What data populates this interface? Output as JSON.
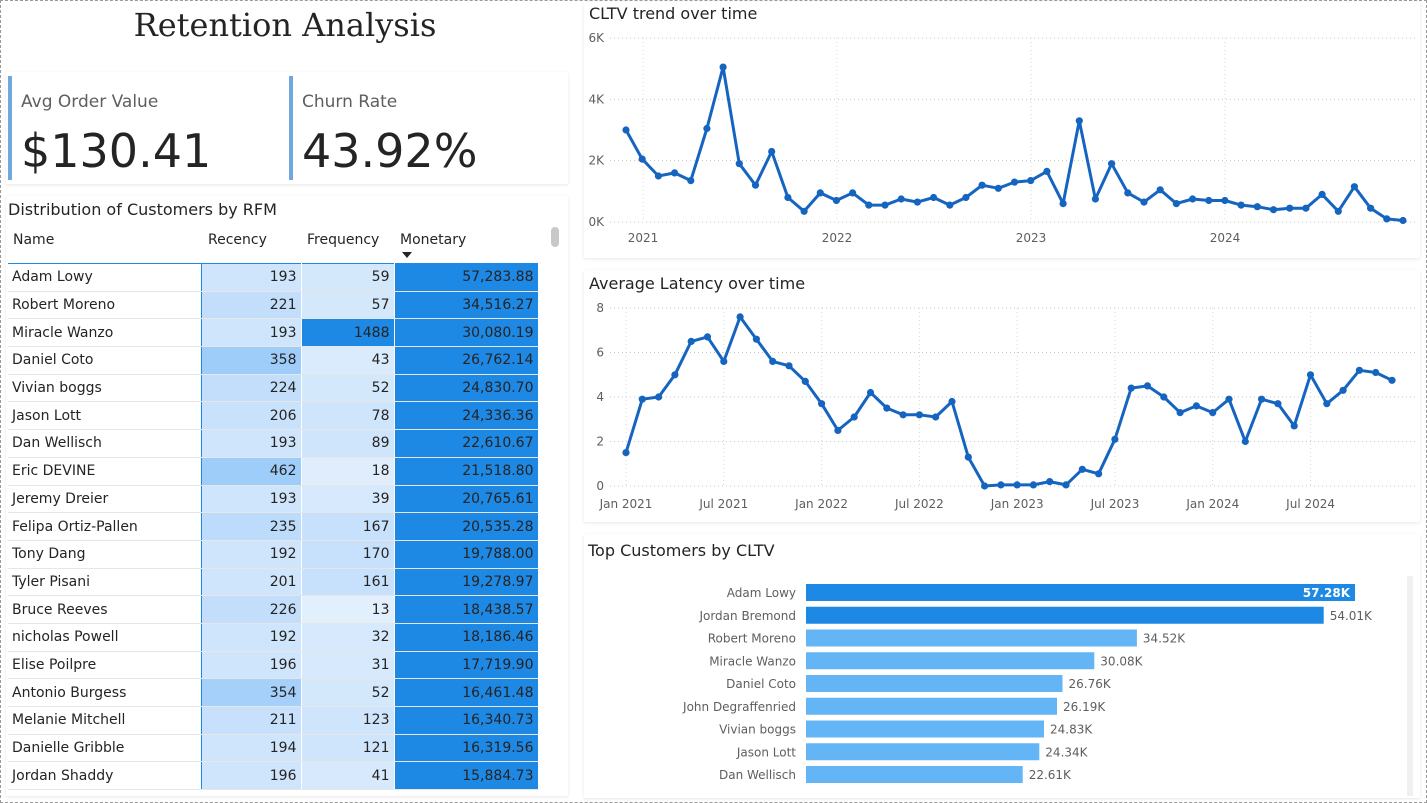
{
  "report": {
    "title": "Retention Analysis"
  },
  "kpis": {
    "avg_order_value": {
      "label": "Avg Order Value",
      "value": "$130.41"
    },
    "churn_rate": {
      "label": "Churn Rate",
      "value": "43.92%"
    }
  },
  "rfm_table": {
    "title": "Distribution of Customers by RFM",
    "columns": [
      "Name",
      "Recency",
      "Frequency",
      "Monetary"
    ],
    "sort_column": "Monetary",
    "rows": [
      [
        "Adam Lowy",
        "193",
        "59",
        "57,283.88"
      ],
      [
        "Robert Moreno",
        "221",
        "57",
        "34,516.27"
      ],
      [
        "Miracle Wanzo",
        "193",
        "1488",
        "30,080.19"
      ],
      [
        "Daniel Coto",
        "358",
        "43",
        "26,762.14"
      ],
      [
        "Vivian boggs",
        "224",
        "52",
        "24,830.70"
      ],
      [
        "Jason Lott",
        "206",
        "78",
        "24,336.36"
      ],
      [
        "Dan Wellisch",
        "193",
        "89",
        "22,610.67"
      ],
      [
        "Eric DEVINE",
        "462",
        "18",
        "21,518.80"
      ],
      [
        "Jeremy Dreier",
        "193",
        "39",
        "20,765.61"
      ],
      [
        "Felipa Ortiz-Pallen",
        "235",
        "167",
        "20,535.28"
      ],
      [
        "Tony Dang",
        "192",
        "170",
        "19,788.00"
      ],
      [
        "Tyler Pisani",
        "201",
        "161",
        "19,278.97"
      ],
      [
        "Bruce Reeves",
        "226",
        "13",
        "18,438.57"
      ],
      [
        "nicholas Powell",
        "192",
        "32",
        "18,186.46"
      ],
      [
        "Elise Poilpre",
        "196",
        "31",
        "17,719.90"
      ],
      [
        "Antonio Burgess",
        "354",
        "52",
        "16,461.48"
      ],
      [
        "Melanie Mitchell",
        "211",
        "123",
        "16,340.73"
      ],
      [
        "Danielle Gribble",
        "194",
        "121",
        "16,319.56"
      ],
      [
        "Jordan Shaddy",
        "196",
        "41",
        "15,884.73"
      ]
    ],
    "recency_colors": [
      "#cfe5fc",
      "#c2defb",
      "#cfe5fc",
      "#9fcdfa",
      "#c2defb",
      "#c9e2fc",
      "#cfe5fc",
      "#9fcdfa",
      "#cfe5fc",
      "#bddcfb",
      "#cfe5fc",
      "#cfe5fc",
      "#c2defb",
      "#cfe5fc",
      "#cfe5fc",
      "#a5d0fa",
      "#c7e1fc",
      "#cfe5fc",
      "#cfe5fc"
    ],
    "frequency_colors": [
      "#d4e8fc",
      "#d4e8fc",
      "#1e88e5",
      "#d9ebfd",
      "#d4e8fc",
      "#cfe5fc",
      "#cfe5fc",
      "#dfedfd",
      "#d7eafd",
      "#c7e1fc",
      "#c7e1fc",
      "#c7e1fc",
      "#e2effd",
      "#d7eafd",
      "#d7eafd",
      "#d4e8fc",
      "#cfe5fc",
      "#cfe5fc",
      "#d7eafd"
    ],
    "monetary_color": "#1e88e5"
  },
  "cltv_chart": {
    "title": "CLTV trend over time",
    "chart_data": {
      "type": "line",
      "title": "CLTV trend over time",
      "y_ticks": [
        "6K",
        "4K",
        "2K",
        "0K"
      ],
      "x_ticks": [
        "2021",
        "2022",
        "2023",
        "2024"
      ],
      "ylim": [
        0,
        6000
      ],
      "color": "#1565c0",
      "values": [
        3000,
        2050,
        1500,
        1600,
        1350,
        3050,
        5050,
        1900,
        1200,
        2300,
        800,
        350,
        950,
        700,
        950,
        550,
        550,
        750,
        650,
        800,
        550,
        800,
        1200,
        1100,
        1300,
        1350,
        1650,
        600,
        3300,
        750,
        1900,
        950,
        650,
        1050,
        600,
        750,
        700,
        700,
        550,
        500,
        400,
        450,
        450,
        900,
        350,
        1150,
        450,
        100,
        50
      ],
      "grid": true
    }
  },
  "latency_chart": {
    "title": "Average Latency over time",
    "chart_data": {
      "type": "line",
      "title": "Average Latency over time",
      "y_ticks": [
        "8",
        "6",
        "4",
        "2",
        "0"
      ],
      "x_ticks": [
        "Jan 2021",
        "Jul 2021",
        "Jan 2022",
        "Jul 2022",
        "Jan 2023",
        "Jul 2023",
        "Jan 2024",
        "Jul 2024"
      ],
      "ylim": [
        0,
        8
      ],
      "color": "#1565c0",
      "values": [
        1.5,
        3.9,
        4.0,
        5.0,
        6.5,
        6.7,
        5.6,
        7.6,
        6.6,
        5.6,
        5.4,
        4.7,
        3.7,
        2.5,
        3.1,
        4.2,
        3.5,
        3.2,
        3.2,
        3.1,
        3.8,
        1.3,
        0.0,
        0.05,
        0.05,
        0.05,
        0.2,
        0.05,
        0.75,
        0.55,
        2.1,
        4.4,
        4.5,
        4.0,
        3.3,
        3.6,
        3.3,
        3.9,
        2.0,
        3.9,
        3.7,
        2.7,
        5.0,
        3.7,
        4.3,
        5.2,
        5.1,
        4.75
      ],
      "grid": true
    }
  },
  "top_customers_chart": {
    "title": "Top Customers by CLTV",
    "chart_data": {
      "type": "bar",
      "orientation": "horizontal",
      "title": "Top Customers by CLTV",
      "categories": [
        "Adam Lowy",
        "Jordan Bremond",
        "Robert Moreno",
        "Miracle Wanzo",
        "Daniel Coto",
        "John Degraffenried",
        "Vivian boggs",
        "Jason Lott",
        "Dan Wellisch"
      ],
      "values": [
        57.28,
        54.01,
        34.52,
        30.08,
        26.76,
        26.19,
        24.83,
        24.34,
        22.61
      ],
      "labels": [
        "57.28K",
        "54.01K",
        "34.52K",
        "30.08K",
        "26.76K",
        "26.19K",
        "24.83K",
        "24.34K",
        "22.61K"
      ],
      "colors": [
        "#1e88e5",
        "#1e88e5",
        "#64b5f6",
        "#64b5f6",
        "#64b5f6",
        "#64b5f6",
        "#64b5f6",
        "#64b5f6",
        "#64b5f6"
      ]
    }
  }
}
